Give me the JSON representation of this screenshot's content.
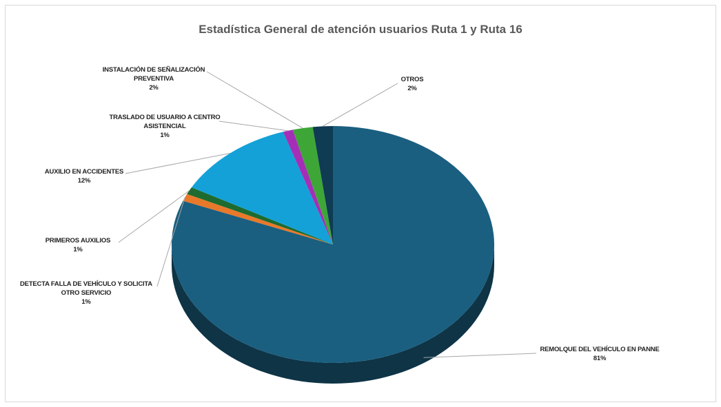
{
  "chart_data": {
    "type": "pie",
    "title": "Estadística General de atención usuarios Ruta 1 y Ruta 16",
    "categories": [
      "REMOLQUE DEL VEHÍCULO EN PANNE",
      "DETECTA FALLA DE VEHÍCULO Y SOLICITA OTRO SERVICIO",
      "PRIMEROS AUXILIOS",
      "AUXILIO EN ACCIDENTES",
      "TRASLADO DE USUARIO A CENTRO ASISTENCIAL",
      "INSTALACIÓN DE SEÑALIZACIÓN PREVENTIVA",
      "OTROS"
    ],
    "values": [
      81,
      1,
      1,
      12,
      1,
      2,
      2
    ],
    "value_labels": [
      "81%",
      "1%",
      "1%",
      "12%",
      "1%",
      "2%",
      "2%"
    ],
    "colors": [
      "#1a5f80",
      "#e8792a",
      "#1d6b2f",
      "#14a1d8",
      "#a42fb6",
      "#3da637",
      "#0f3b53"
    ]
  }
}
